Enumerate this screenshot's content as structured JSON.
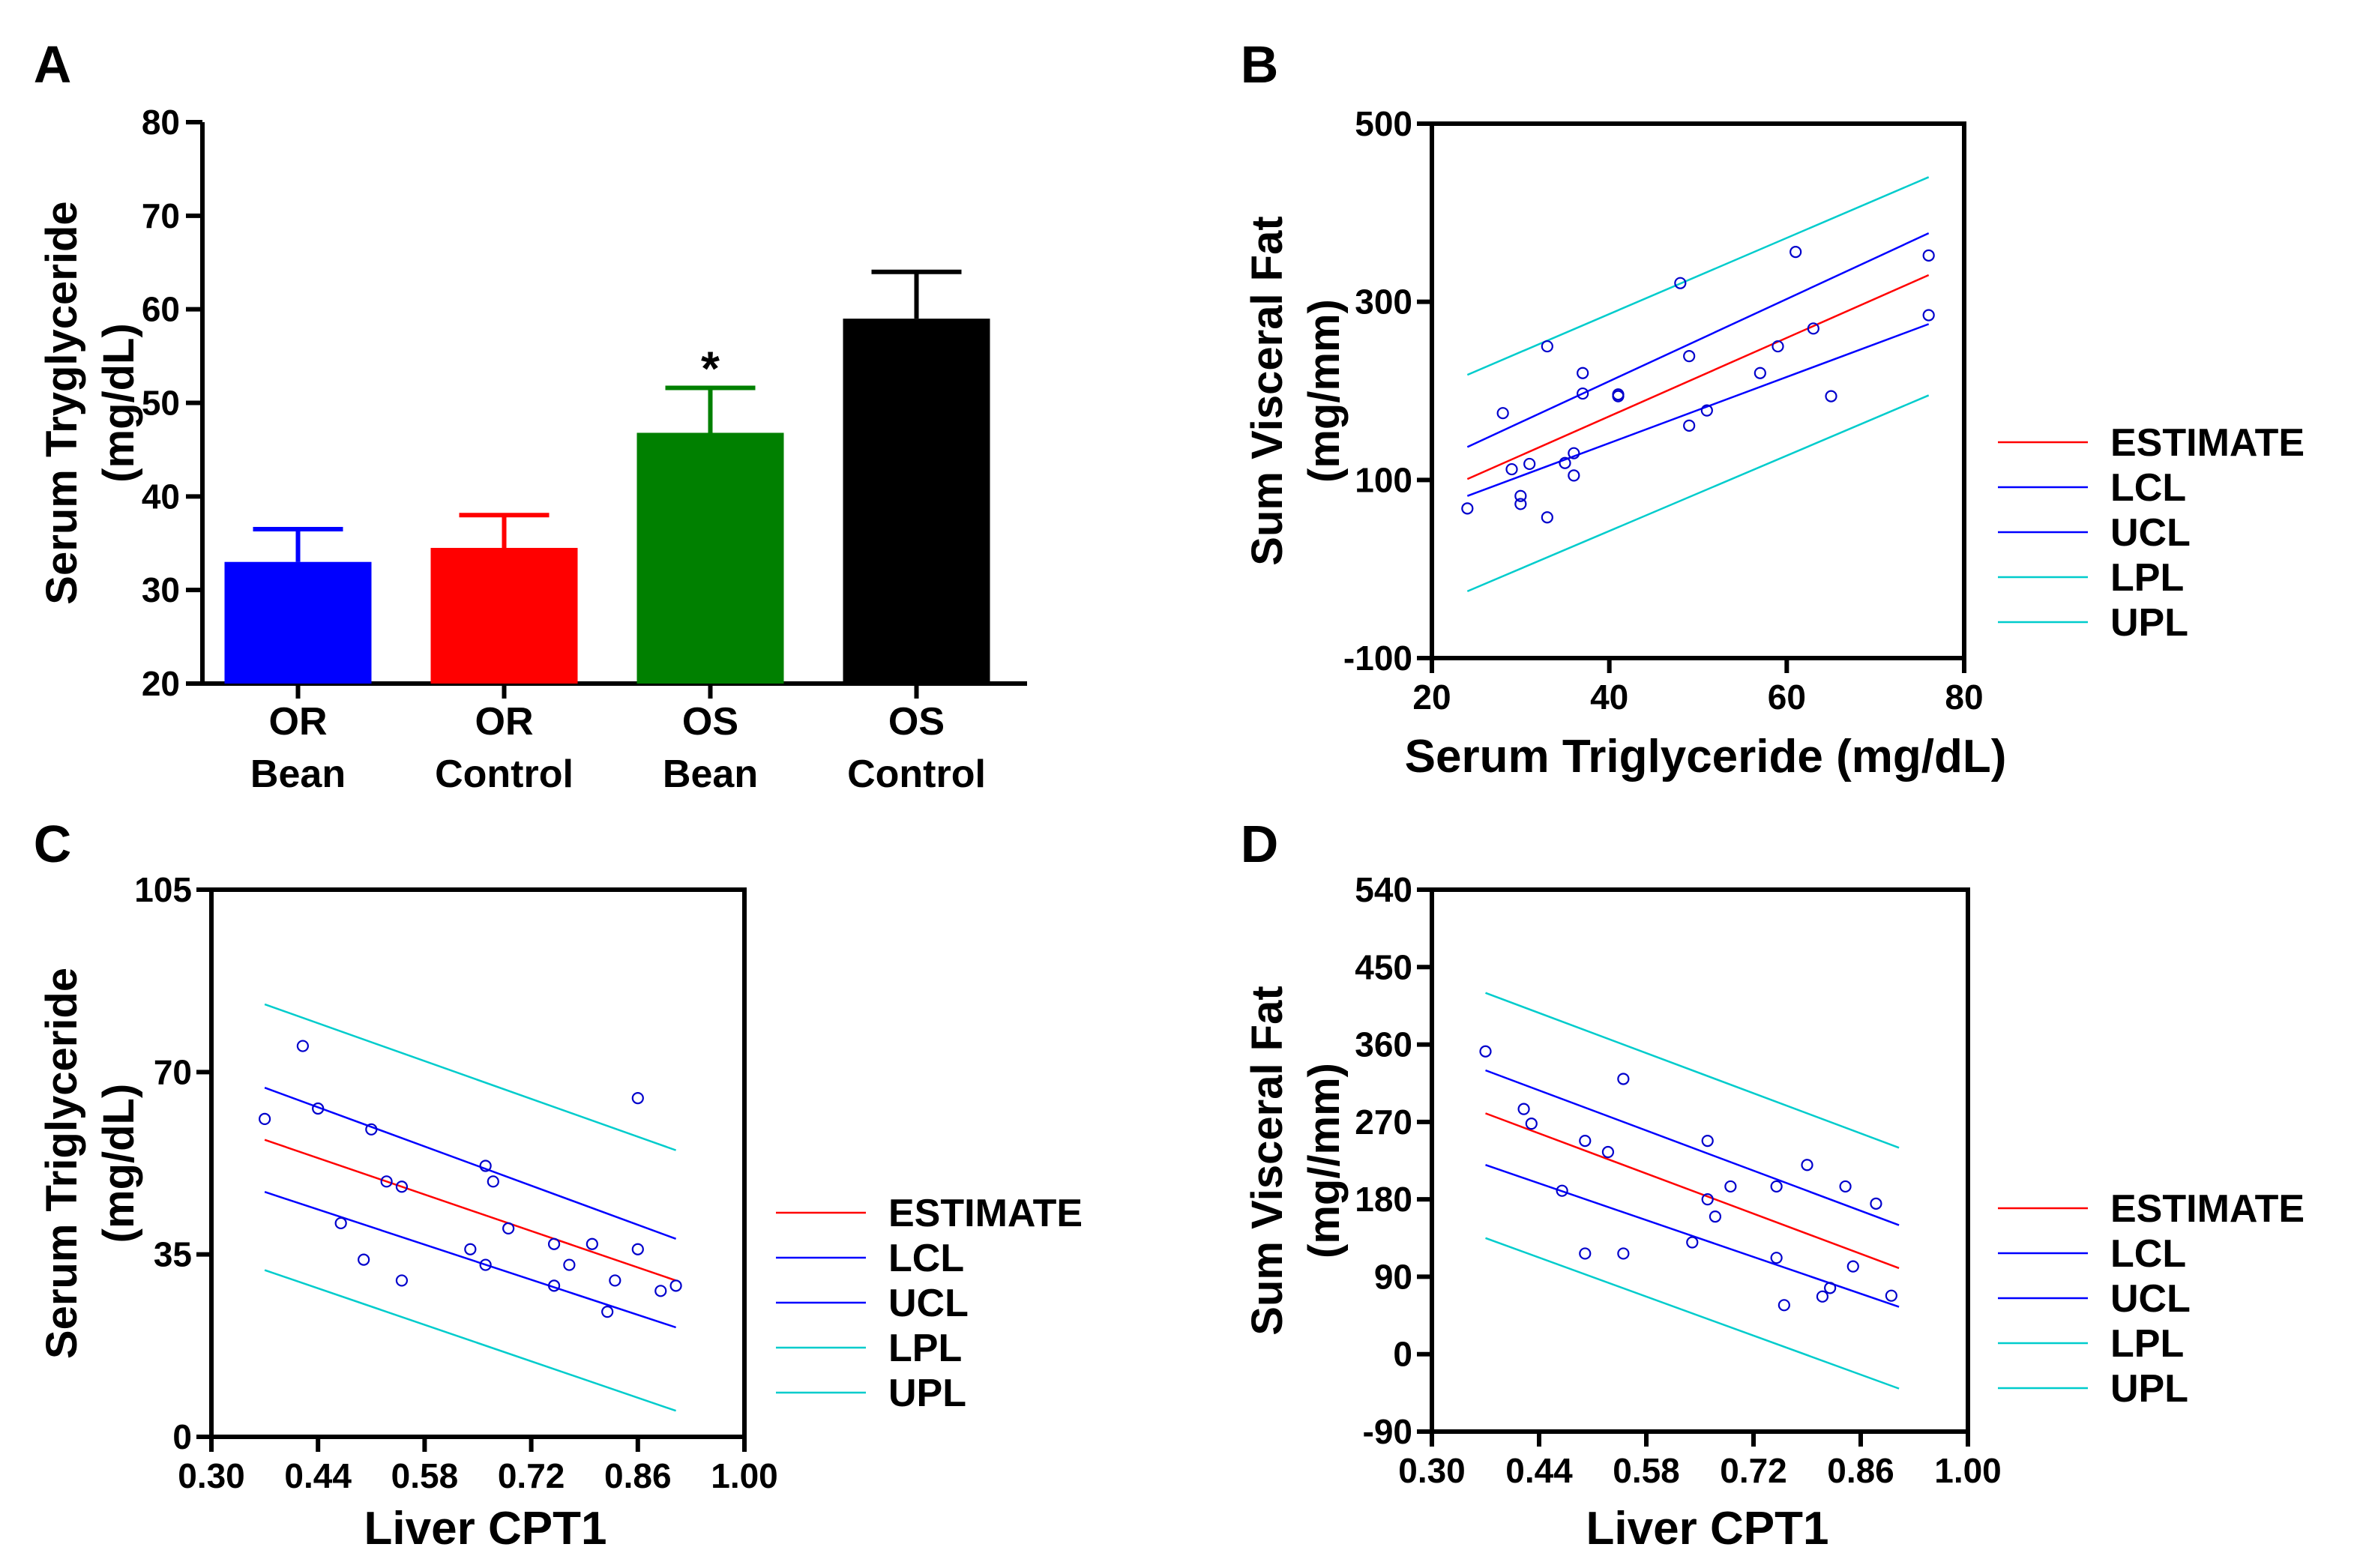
{
  "chart_data": [
    {
      "panel": "A",
      "type": "bar",
      "title": "",
      "ylabel_line1": "Serum Tryglyceride",
      "ylabel_line2": "(mg/dL)",
      "xlabel": "",
      "ylim": [
        20,
        80
      ],
      "yticks": [
        20,
        30,
        40,
        50,
        60,
        70,
        80
      ],
      "categories": [
        [
          "OR",
          "Bean"
        ],
        [
          "OR",
          "Control"
        ],
        [
          "OS",
          "Bean"
        ],
        [
          "OS",
          "Control"
        ]
      ],
      "values": [
        33,
        34.5,
        46.8,
        59
      ],
      "errors": [
        3.5,
        3.5,
        4.8,
        5
      ],
      "colors": [
        "#0000ff",
        "#ff0000",
        "#008000",
        "#000000"
      ],
      "annotations": [
        {
          "category_index": 2,
          "text": "*"
        }
      ]
    },
    {
      "panel": "B",
      "type": "scatter",
      "ylabel_line1": "Sum Visceral Fat",
      "ylabel_line2": "(mg/mm)",
      "xlabel": "Serum Triglyceride (mg/dL)",
      "xlim": [
        20,
        80
      ],
      "ylim": [
        -100,
        500
      ],
      "xticks": [
        20,
        40,
        60,
        80
      ],
      "yticks": [
        -100,
        100,
        300,
        500
      ],
      "points": [
        [
          24,
          68
        ],
        [
          28,
          175
        ],
        [
          29,
          112
        ],
        [
          30,
          73
        ],
        [
          30,
          82
        ],
        [
          31,
          118
        ],
        [
          33,
          250
        ],
        [
          33,
          58
        ],
        [
          35,
          119
        ],
        [
          36,
          130
        ],
        [
          36,
          105
        ],
        [
          37,
          197
        ],
        [
          37,
          220
        ],
        [
          41,
          196
        ],
        [
          41,
          194
        ],
        [
          48,
          321
        ],
        [
          49,
          239
        ],
        [
          49,
          161
        ],
        [
          51,
          178
        ],
        [
          57,
          220
        ],
        [
          59,
          250
        ],
        [
          61,
          356
        ],
        [
          63,
          270
        ],
        [
          65,
          194
        ],
        [
          76,
          352
        ],
        [
          76,
          285
        ]
      ],
      "lines": [
        {
          "name": "ESTIMATE",
          "color": "#ff0000",
          "x": [
            24,
            76
          ],
          "y": [
            101,
            330
          ]
        },
        {
          "name": "LCL",
          "color": "#0000ff",
          "x": [
            24,
            76
          ],
          "y": [
            82,
            275
          ]
        },
        {
          "name": "UCL",
          "color": "#0000ff",
          "x": [
            24,
            76
          ],
          "y": [
            137,
            377
          ]
        },
        {
          "name": "LPL",
          "color": "#00cccc",
          "x": [
            24,
            76
          ],
          "y": [
            -25,
            195
          ]
        },
        {
          "name": "UPL",
          "color": "#00cccc",
          "x": [
            24,
            76
          ],
          "y": [
            218,
            440
          ]
        }
      ],
      "legend": [
        "ESTIMATE",
        "LCL",
        "UCL",
        "LPL",
        "UPL"
      ]
    },
    {
      "panel": "C",
      "type": "scatter",
      "ylabel_line1": "Serum Triglyceride",
      "ylabel_line2": "(mg/dL)",
      "xlabel": "Liver CPT1",
      "xlim": [
        0.3,
        1.0
      ],
      "ylim": [
        0,
        105
      ],
      "xticks": [
        "0.30",
        "0.44",
        "0.58",
        "0.72",
        "0.86",
        "1.00"
      ],
      "yticks": [
        0,
        35,
        70,
        105
      ],
      "points": [
        [
          0.37,
          61
        ],
        [
          0.42,
          75
        ],
        [
          0.44,
          63
        ],
        [
          0.47,
          41
        ],
        [
          0.5,
          34
        ],
        [
          0.51,
          59
        ],
        [
          0.53,
          49
        ],
        [
          0.55,
          48
        ],
        [
          0.55,
          30
        ],
        [
          0.64,
          36
        ],
        [
          0.66,
          33
        ],
        [
          0.66,
          52
        ],
        [
          0.67,
          49
        ],
        [
          0.69,
          40
        ],
        [
          0.75,
          37
        ],
        [
          0.75,
          29
        ],
        [
          0.77,
          33
        ],
        [
          0.8,
          37
        ],
        [
          0.82,
          24
        ],
        [
          0.83,
          30
        ],
        [
          0.86,
          36
        ],
        [
          0.86,
          65
        ],
        [
          0.89,
          28
        ],
        [
          0.91,
          29
        ]
      ],
      "lines": [
        {
          "name": "ESTIMATE",
          "color": "#ff0000",
          "x": [
            0.37,
            0.91
          ],
          "y": [
            57,
            30
          ]
        },
        {
          "name": "LCL",
          "color": "#0000ff",
          "x": [
            0.37,
            0.91
          ],
          "y": [
            47,
            21
          ]
        },
        {
          "name": "UCL",
          "color": "#0000ff",
          "x": [
            0.37,
            0.91
          ],
          "y": [
            67,
            38
          ]
        },
        {
          "name": "LPL",
          "color": "#00cccc",
          "x": [
            0.37,
            0.91
          ],
          "y": [
            32,
            5
          ]
        },
        {
          "name": "UPL",
          "color": "#00cccc",
          "x": [
            0.37,
            0.91
          ],
          "y": [
            83,
            55
          ]
        }
      ],
      "legend": [
        "ESTIMATE",
        "LCL",
        "UCL",
        "LPL",
        "UPL"
      ]
    },
    {
      "panel": "D",
      "type": "scatter",
      "ylabel_line1": "Sum Visceral Fat",
      "ylabel_line2": "(mg//mm)",
      "xlabel": "Liver CPT1",
      "xlim": [
        0.3,
        1.0
      ],
      "ylim": [
        -90,
        540
      ],
      "xticks": [
        "0.30",
        "0.44",
        "0.58",
        "0.72",
        "0.86",
        "1.00"
      ],
      "yticks": [
        -90,
        0,
        90,
        180,
        270,
        360,
        450,
        540
      ],
      "points": [
        [
          0.37,
          352
        ],
        [
          0.42,
          285
        ],
        [
          0.43,
          268
        ],
        [
          0.47,
          190
        ],
        [
          0.5,
          117
        ],
        [
          0.5,
          248
        ],
        [
          0.53,
          235
        ],
        [
          0.55,
          320
        ],
        [
          0.55,
          117
        ],
        [
          0.64,
          130
        ],
        [
          0.66,
          180
        ],
        [
          0.66,
          248
        ],
        [
          0.67,
          160
        ],
        [
          0.69,
          195
        ],
        [
          0.75,
          195
        ],
        [
          0.75,
          112
        ],
        [
          0.76,
          57
        ],
        [
          0.79,
          220
        ],
        [
          0.81,
          67
        ],
        [
          0.82,
          77
        ],
        [
          0.84,
          195
        ],
        [
          0.85,
          102
        ],
        [
          0.88,
          175
        ],
        [
          0.9,
          68
        ]
      ],
      "lines": [
        {
          "name": "ESTIMATE",
          "color": "#ff0000",
          "x": [
            0.37,
            0.91
          ],
          "y": [
            280,
            100
          ]
        },
        {
          "name": "LCL",
          "color": "#0000ff",
          "x": [
            0.37,
            0.91
          ],
          "y": [
            220,
            55
          ]
        },
        {
          "name": "UCL",
          "color": "#0000ff",
          "x": [
            0.37,
            0.91
          ],
          "y": [
            330,
            150
          ]
        },
        {
          "name": "LPL",
          "color": "#00cccc",
          "x": [
            0.37,
            0.91
          ],
          "y": [
            135,
            -40
          ]
        },
        {
          "name": "UPL",
          "color": "#00cccc",
          "x": [
            0.37,
            0.91
          ],
          "y": [
            420,
            240
          ]
        }
      ],
      "legend": [
        "ESTIMATE",
        "LCL",
        "UCL",
        "LPL",
        "UPL"
      ]
    }
  ]
}
